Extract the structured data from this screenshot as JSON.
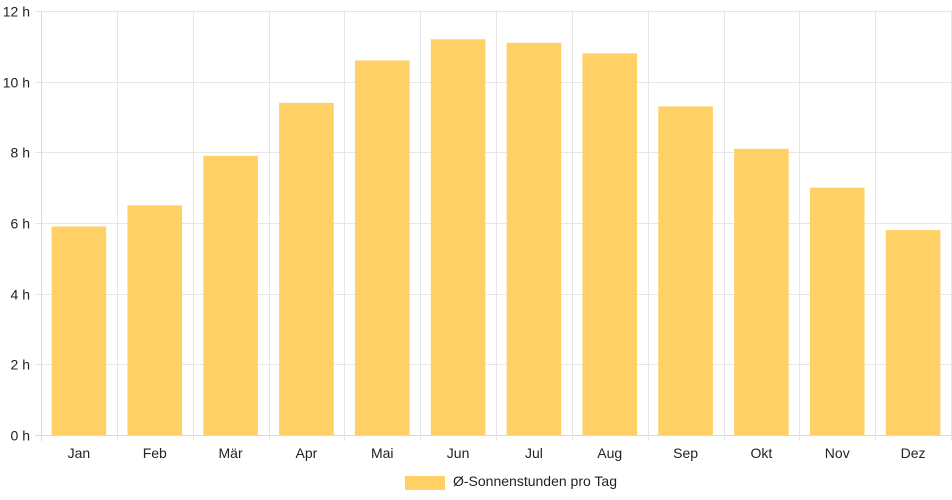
{
  "chart_data": {
    "type": "bar",
    "categories": [
      "Jan",
      "Feb",
      "Mär",
      "Apr",
      "Mai",
      "Jun",
      "Jul",
      "Aug",
      "Sep",
      "Okt",
      "Nov",
      "Dez"
    ],
    "series": [
      {
        "name": "Ø-Sonnenstunden pro Tag",
        "values": [
          5.9,
          6.5,
          7.9,
          9.4,
          10.6,
          11.2,
          11.1,
          10.8,
          9.3,
          8.1,
          7.0,
          5.8
        ],
        "color": "#fed066"
      }
    ],
    "ylim": [
      0,
      12
    ],
    "yticks": [
      0,
      2,
      4,
      6,
      8,
      10,
      12
    ],
    "ytick_labels": [
      "0 h",
      "2 h",
      "4 h",
      "6 h",
      "8 h",
      "10 h",
      "12 h"
    ],
    "grid": true,
    "legend_position": "bottom",
    "colors": {
      "bar": "#fed066",
      "grid": "#e6e6e6",
      "text": "#222222"
    }
  }
}
